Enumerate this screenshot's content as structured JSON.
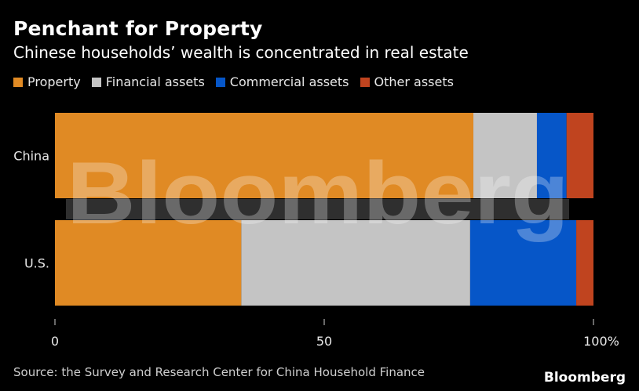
{
  "header": {
    "title": "Penchant for Property",
    "subtitle": "Chinese households’ wealth is concentrated in real estate"
  },
  "legend": [
    {
      "label": "Property",
      "color": "#e08a24"
    },
    {
      "label": "Financial assets",
      "color": "#c4c4c4"
    },
    {
      "label": "Commercial assets",
      "color": "#0656c8"
    },
    {
      "label": "Other assets",
      "color": "#c0441f"
    }
  ],
  "chart_data": {
    "type": "bar",
    "orientation": "horizontal",
    "stacked": true,
    "categories": [
      "China",
      "U.S."
    ],
    "series": [
      {
        "name": "Property",
        "values": [
          77.7,
          34.6
        ],
        "color": "#e08a24"
      },
      {
        "name": "Financial assets",
        "values": [
          11.8,
          42.5
        ],
        "color": "#c4c4c4"
      },
      {
        "name": "Commercial assets",
        "values": [
          5.5,
          19.7
        ],
        "color": "#0656c8"
      },
      {
        "name": "Other assets",
        "values": [
          5.0,
          3.2
        ],
        "color": "#c0441f"
      }
    ],
    "xlim": [
      0,
      100
    ],
    "xticks": [
      {
        "value": 0,
        "label": "0"
      },
      {
        "value": 50,
        "label": "50"
      },
      {
        "value": 100,
        "label": "100%"
      }
    ],
    "grid": false,
    "legend_position": "top-left"
  },
  "footer": {
    "source": "Source: the Survey and Research Center for China Household Finance",
    "brand": "Bloomberg"
  },
  "watermark": {
    "text": "Bloomberg"
  }
}
